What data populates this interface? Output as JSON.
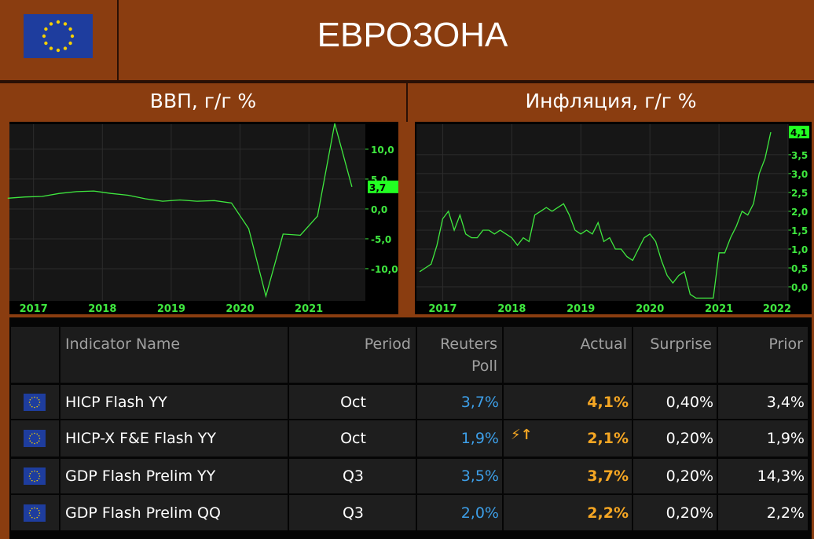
{
  "header": {
    "title": "ЕВРОЗОНА"
  },
  "chart_data": [
    {
      "type": "line",
      "title": "ВВП, г/г %",
      "x": [
        2016.625,
        2016.875,
        2017.125,
        2017.375,
        2017.625,
        2017.875,
        2018.125,
        2018.375,
        2018.625,
        2018.875,
        2019.125,
        2019.375,
        2019.625,
        2019.875,
        2020.125,
        2020.375,
        2020.625,
        2020.875,
        2021.125,
        2021.375,
        2021.625
      ],
      "values": [
        1.8,
        2.0,
        2.1,
        2.6,
        2.9,
        3.0,
        2.6,
        2.3,
        1.7,
        1.3,
        1.5,
        1.3,
        1.4,
        1.0,
        -3.3,
        -14.6,
        -4.2,
        -4.4,
        -1.2,
        14.3,
        3.7
      ],
      "last_value_label": "3,7",
      "color": "#3fe83f",
      "xlim": [
        2016.65,
        2021.82
      ],
      "xticks": [
        2017,
        2018,
        2019,
        2020,
        2021
      ],
      "ylim": [
        -15.4,
        14.2
      ],
      "yticks": [
        {
          "value": 10,
          "label": "10,0"
        },
        {
          "value": 5,
          "label": "5,0"
        },
        {
          "value": 0,
          "label": "0,0"
        },
        {
          "value": -5,
          "label": "-5,0"
        },
        {
          "value": -10,
          "label": "-10,0"
        }
      ],
      "grid": true
    },
    {
      "type": "line",
      "title": "Инфляция, г/г %",
      "x": [
        2016.667,
        2016.75,
        2016.833,
        2016.917,
        2017.0,
        2017.083,
        2017.167,
        2017.25,
        2017.333,
        2017.417,
        2017.5,
        2017.583,
        2017.667,
        2017.75,
        2017.833,
        2017.917,
        2018.0,
        2018.083,
        2018.167,
        2018.25,
        2018.333,
        2018.417,
        2018.5,
        2018.583,
        2018.667,
        2018.75,
        2018.833,
        2018.917,
        2019.0,
        2019.083,
        2019.167,
        2019.25,
        2019.333,
        2019.417,
        2019.5,
        2019.583,
        2019.667,
        2019.75,
        2019.833,
        2019.917,
        2020.0,
        2020.083,
        2020.167,
        2020.25,
        2020.333,
        2020.417,
        2020.5,
        2020.583,
        2020.667,
        2020.75,
        2020.833,
        2020.917,
        2021.0,
        2021.083,
        2021.167,
        2021.25,
        2021.333,
        2021.417,
        2021.5,
        2021.583,
        2021.667,
        2021.75
      ],
      "values": [
        0.4,
        0.5,
        0.6,
        1.1,
        1.8,
        2.0,
        1.5,
        1.9,
        1.4,
        1.3,
        1.3,
        1.5,
        1.5,
        1.4,
        1.5,
        1.4,
        1.3,
        1.1,
        1.3,
        1.2,
        1.9,
        2.0,
        2.1,
        2.0,
        2.1,
        2.2,
        1.9,
        1.5,
        1.4,
        1.5,
        1.4,
        1.7,
        1.2,
        1.3,
        1.0,
        1.0,
        0.8,
        0.7,
        1.0,
        1.3,
        1.4,
        1.2,
        0.7,
        0.3,
        0.1,
        0.3,
        0.4,
        -0.2,
        -0.3,
        -0.3,
        -0.3,
        -0.3,
        0.9,
        0.9,
        1.3,
        1.6,
        2.0,
        1.9,
        2.2,
        3.0,
        3.4,
        4.1
      ],
      "last_value_label": "4,1",
      "color": "#3fe83f",
      "xlim": [
        2016.62,
        2022.0
      ],
      "xticks": [
        2017,
        2018,
        2019,
        2020,
        2021,
        2022
      ],
      "ylim": [
        -0.375,
        4.31
      ],
      "yticks": [
        {
          "value": 0,
          "label": "0,0"
        },
        {
          "value": 0.5,
          "label": "0,5"
        },
        {
          "value": 1,
          "label": "1,0"
        },
        {
          "value": 1.5,
          "label": "1,5"
        },
        {
          "value": 2,
          "label": "2,0"
        },
        {
          "value": 2.5,
          "label": "2,5"
        },
        {
          "value": 3,
          "label": "3,0"
        },
        {
          "value": 3.5,
          "label": "3,5"
        }
      ],
      "grid": true
    }
  ],
  "table": {
    "columns": [
      "Indicator Name",
      "Period",
      "Reuters Poll",
      "Actual",
      "Surprise",
      "Prior"
    ],
    "rows": [
      [
        "HICP Flash YY",
        "Oct",
        "3,7%",
        "4,1%",
        "0,40%",
        "3,4%"
      ],
      [
        "HICP-X F&E Flash YY",
        "Oct",
        "1,9%",
        "2,1%",
        "0,20%",
        "1,9%"
      ],
      [
        "GDP Flash Prelim YY",
        "Q3",
        "3,5%",
        "3,7%",
        "0,20%",
        "14,3%"
      ],
      [
        "GDP Flash Prelim QQ",
        "Q3",
        "2,0%",
        "2,2%",
        "0,20%",
        "2,2%"
      ]
    ]
  }
}
